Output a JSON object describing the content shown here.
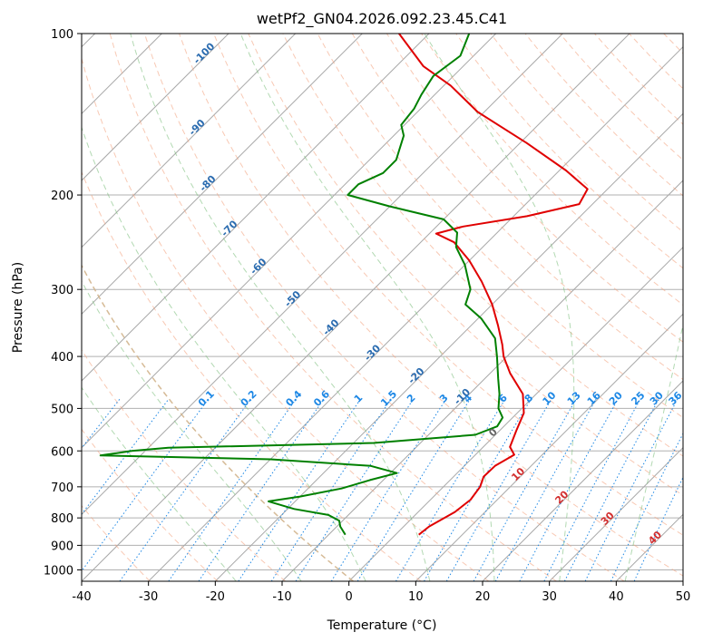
{
  "chart_data": {
    "type": "line",
    "title": "wetPf2_GN04.2026.092.23.45.C41",
    "xlabel": "Temperature (°C)",
    "ylabel": "Pressure (hPa)",
    "xlim": [
      -40,
      50
    ],
    "ylim": [
      1050,
      100
    ],
    "y_scale": "log",
    "skew": "temperature lines skewed 45 degrees",
    "grid": true,
    "x_ticks": [
      "-40",
      "-30",
      "-20",
      "-10",
      "0",
      "10",
      "20",
      "30",
      "40",
      "50"
    ],
    "y_ticks": [
      "100",
      "200",
      "300",
      "400",
      "500",
      "600",
      "700",
      "800",
      "900",
      "1000"
    ],
    "mixing_ratio_labels": [
      "0.1",
      "0.2",
      "0.4",
      "0.6",
      "1",
      "1.5",
      "2",
      "3",
      "4",
      "6",
      "8",
      "10",
      "13",
      "16",
      "20",
      "25",
      "30",
      "36"
    ],
    "dry_adiabat_labels": [
      "-100",
      "-90",
      "-80",
      "-70",
      "-60",
      "-50",
      "-40",
      "-30",
      "-20",
      "-10"
    ],
    "moist_adiabat_labels": [
      "0",
      "10",
      "20",
      "30",
      "40"
    ],
    "series": [
      {
        "role": "temperature",
        "color": "#e00000",
        "points": [
          {
            "p": 860,
            "t": 3.5
          },
          {
            "p": 830,
            "t": 3.8
          },
          {
            "p": 780,
            "t": 5.5
          },
          {
            "p": 740,
            "t": 6.0
          },
          {
            "p": 700,
            "t": 5.5
          },
          {
            "p": 670,
            "t": 4.5
          },
          {
            "p": 640,
            "t": 4.6
          },
          {
            "p": 610,
            "t": 5.8
          },
          {
            "p": 590,
            "t": 4.0
          },
          {
            "p": 550,
            "t": 2.5
          },
          {
            "p": 510,
            "t": 1.0
          },
          {
            "p": 470,
            "t": -2.0
          },
          {
            "p": 430,
            "t": -7.0
          },
          {
            "p": 400,
            "t": -10.5
          },
          {
            "p": 380,
            "t": -12.5
          },
          {
            "p": 350,
            "t": -16.0
          },
          {
            "p": 320,
            "t": -20.0
          },
          {
            "p": 290,
            "t": -25.0
          },
          {
            "p": 265,
            "t": -30.0
          },
          {
            "p": 245,
            "t": -35.0
          },
          {
            "p": 236,
            "t": -39.0
          },
          {
            "p": 229,
            "t": -36.0
          },
          {
            "p": 219,
            "t": -28.0
          },
          {
            "p": 208,
            "t": -22.0
          },
          {
            "p": 195,
            "t": -23.0
          },
          {
            "p": 180,
            "t": -29.0
          },
          {
            "p": 160,
            "t": -39.0
          },
          {
            "p": 140,
            "t": -51.0
          },
          {
            "p": 125,
            "t": -59.0
          },
          {
            "p": 115,
            "t": -66.0
          },
          {
            "p": 100,
            "t": -74.5
          }
        ]
      },
      {
        "role": "dewpoint",
        "color": "#008000",
        "points": [
          {
            "p": 860,
            "t": -7.5
          },
          {
            "p": 830,
            "t": -9.5
          },
          {
            "p": 810,
            "t": -10.5
          },
          {
            "p": 790,
            "t": -13.0
          },
          {
            "p": 770,
            "t": -19.0
          },
          {
            "p": 745,
            "t": -24.0
          },
          {
            "p": 730,
            "t": -20.0
          },
          {
            "p": 705,
            "t": -15.0
          },
          {
            "p": 680,
            "t": -12.0
          },
          {
            "p": 660,
            "t": -9.0
          },
          {
            "p": 640,
            "t": -14.0
          },
          {
            "p": 622,
            "t": -30.0
          },
          {
            "p": 612,
            "t": -56.0
          },
          {
            "p": 600,
            "t": -52.0
          },
          {
            "p": 592,
            "t": -47.0
          },
          {
            "p": 580,
            "t": -17.0
          },
          {
            "p": 560,
            "t": -3.0
          },
          {
            "p": 540,
            "t": -1.0
          },
          {
            "p": 520,
            "t": -1.5
          },
          {
            "p": 500,
            "t": -3.5
          },
          {
            "p": 470,
            "t": -5.5
          },
          {
            "p": 440,
            "t": -8.0
          },
          {
            "p": 400,
            "t": -11.5
          },
          {
            "p": 370,
            "t": -14.5
          },
          {
            "p": 340,
            "t": -19.5
          },
          {
            "p": 320,
            "t": -24.0
          },
          {
            "p": 300,
            "t": -25.5
          },
          {
            "p": 270,
            "t": -30.0
          },
          {
            "p": 250,
            "t": -34.0
          },
          {
            "p": 235,
            "t": -36.0
          },
          {
            "p": 222,
            "t": -40.0
          },
          {
            "p": 210,
            "t": -50.0
          },
          {
            "p": 200,
            "t": -58.0
          },
          {
            "p": 191,
            "t": -58.0
          },
          {
            "p": 182,
            "t": -56.0
          },
          {
            "p": 172,
            "t": -56.0
          },
          {
            "p": 165,
            "t": -57.0
          },
          {
            "p": 155,
            "t": -58.5
          },
          {
            "p": 148,
            "t": -60.5
          },
          {
            "p": 138,
            "t": -61.0
          },
          {
            "p": 130,
            "t": -62.0
          },
          {
            "p": 120,
            "t": -63.0
          },
          {
            "p": 110,
            "t": -62.0
          },
          {
            "p": 100,
            "t": -64.0
          }
        ]
      }
    ]
  }
}
